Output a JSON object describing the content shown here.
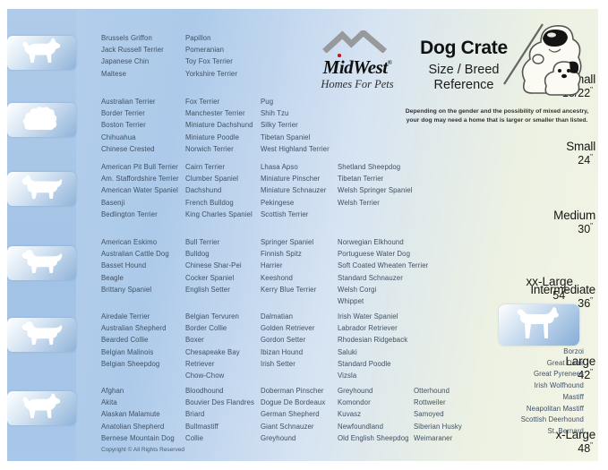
{
  "header": {
    "brand": {
      "name": "MidWest",
      "registered": "®",
      "tagline": "Homes For Pets",
      "icon": "mountain-logo-icon"
    },
    "title": "Dog Crate",
    "subtitle_line1": "Size / Breed",
    "subtitle_line2": "Reference",
    "illustration_icon": "cartoon-dog-teacher-with-puppy-icon",
    "note_line1": "Depending on the gender and the possibility of mixed ancestry,",
    "note_line2": "your dog may need a home that is larger or smaller than listed."
  },
  "footer": {
    "copyright": "Copyright © All Rights Reserved"
  },
  "colors": {
    "sidebar_blue": "#a3c3e6",
    "badge_blue": "#8fb3da",
    "breed_text": "#3f5063",
    "cream_right": "#f3f5e5"
  },
  "sizes": [
    {
      "id": "x-small",
      "label": "x-Small",
      "dimension": "18/22",
      "unit": "\"",
      "icon": "papillon-silhouette-icon",
      "columns": [
        [
          "Brussels Griffon",
          "Jack Russell Terrier",
          "Japanese Chin",
          "Maltese"
        ],
        [
          "Papillon",
          "Pomeranian",
          "Toy Fox Terrier",
          "Yorkshire Terrier"
        ]
      ]
    },
    {
      "id": "small",
      "label": "Small",
      "dimension": "24",
      "unit": "\"",
      "icon": "shih-tzu-silhouette-icon",
      "columns": [
        [
          "Australian Terrier",
          "Border Terrier",
          "Boston Terrier",
          "Chihuahua",
          "Chinese Crested"
        ],
        [
          "Fox Terrier",
          "Manchester Terrier",
          "Miniature Dachshund",
          "Miniature Poodle",
          "Norwich Terrier"
        ],
        [
          "Pug",
          "Shih Tzu",
          "Silky Terrier",
          "Tibetan Spaniel",
          "West Highland Terrier"
        ]
      ]
    },
    {
      "id": "medium",
      "label": "Medium",
      "dimension": "30",
      "unit": "\"",
      "icon": "westie-silhouette-icon",
      "columns": [
        [
          "American Pit Bull Terrier",
          "Am. Staffordshire Terrier",
          "American Water Spaniel",
          "Basenji",
          "Bedlington Terrier"
        ],
        [
          "Cairn Terrier",
          "Clumber Spaniel",
          "Dachshund",
          "French Bulldog",
          "King Charles Spaniel"
        ],
        [
          "Lhasa Apso",
          "Miniature Pinscher",
          "Miniature Schnauzer",
          "Pekingese",
          "Scottish Terrier"
        ],
        [
          "Shetland Sheepdog",
          "Tibetan Terrier",
          "Welsh Springer Spaniel",
          "Welsh Terrier"
        ]
      ]
    },
    {
      "id": "intermediate",
      "label": "Intermediate",
      "dimension": "36",
      "unit": "\"",
      "icon": "spaniel-silhouette-icon",
      "columns": [
        [
          "American Eskimo",
          "Australian Cattle Dog",
          "Basset Hound",
          "Beagle",
          "Brittany Spaniel"
        ],
        [
          "Bull Terrier",
          "Bulldog",
          "Chinese Shar-Pei",
          "Cocker Spaniel",
          "English Setter"
        ],
        [
          "Springer Spaniel",
          "Finnish Spitz",
          "Harrier",
          "Keeshond",
          "Kerry Blue Terrier"
        ],
        [
          "Norwegian Elkhound",
          "Portuguese Water Dog",
          "Soft Coated Wheaten Terrier",
          "Standard Schnauzer",
          "Welsh Corgi",
          "Whippet"
        ]
      ]
    },
    {
      "id": "large",
      "label": "Large",
      "dimension": "42",
      "unit": "\"",
      "icon": "retriever-silhouette-icon",
      "columns": [
        [
          "Airedale Terrier",
          "Australian Shepherd",
          "Bearded Collie",
          "Belgian Malinois",
          "Belgian Sheepdog"
        ],
        [
          "Belgian Tervuren",
          "Border Collie",
          "Boxer",
          "Chesapeake Bay Retriever",
          "Chow-Chow"
        ],
        [
          "Dalmatian",
          "Golden Retriever",
          "Gordon Setter",
          "Ibizan Hound",
          "Irish Setter"
        ],
        [
          "Irish Water Spaniel",
          "Labrador Retriever",
          "Rhodesian Ridgeback",
          "Saluki",
          "Standard Poodle",
          "Vizsla"
        ]
      ]
    },
    {
      "id": "x-large",
      "label": "x-Large",
      "dimension": "48",
      "unit": "\"",
      "icon": "akita-silhouette-icon",
      "columns": [
        [
          "Afghan",
          "Akita",
          "Alaskan Malamute",
          "Anatolian Shepherd",
          "Bernese Mountain Dog"
        ],
        [
          "Bloodhound",
          "Bouvier Des Flandres",
          "Briard",
          "Bullmastiff",
          "Collie"
        ],
        [
          "Doberman Pinscher",
          "Dogue De Bordeaux",
          "German Shepherd",
          "Giant Schnauzer",
          "Greyhound"
        ],
        [
          "Greyhound",
          "Komondor",
          "Kuvasz",
          "Newfoundland",
          "Old English Sheepdog"
        ],
        [
          "Otterhound",
          "Rottweiler",
          "Samoyed",
          "Siberian Husky",
          "Weimaraner"
        ]
      ]
    }
  ],
  "xx_large": {
    "label": "xx-Large",
    "dimension": "54",
    "unit": "\"",
    "icon": "great-dane-silhouette-icon",
    "breeds": [
      "Borzoi",
      "Great Dane",
      "Great Pyrenees",
      "Irish Wolfhound",
      "Mastiff",
      "Neapolitan Mastiff",
      "Scottish Deerhound",
      "St. Bernard"
    ]
  }
}
